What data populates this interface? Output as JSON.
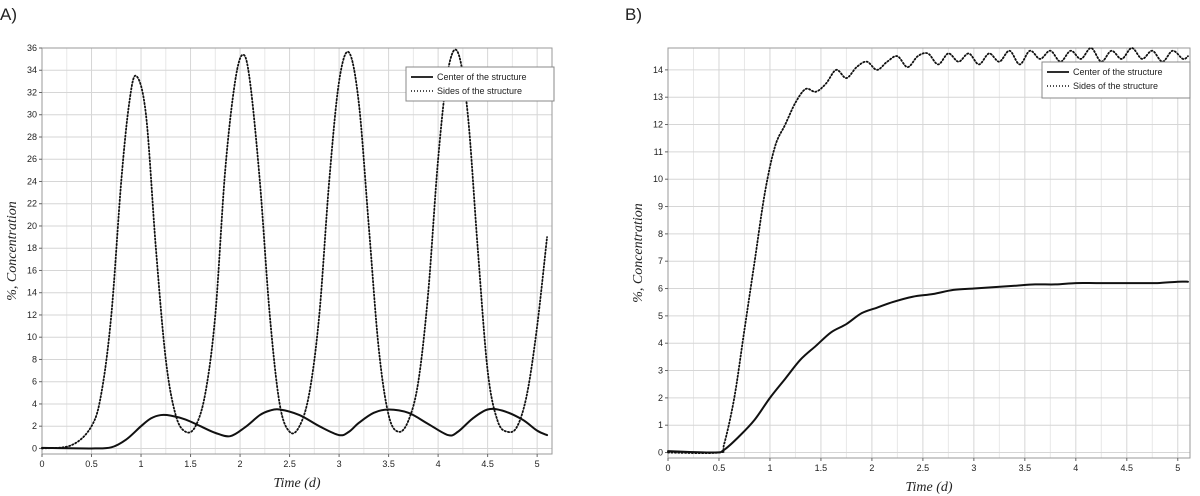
{
  "chart_data": [
    {
      "type": "line",
      "panel_label": "A)",
      "title": "",
      "xlabel": "Time (d)",
      "ylabel": "%, Concentration",
      "xlim": [
        0,
        5.15
      ],
      "ylim": [
        -0.5,
        36
      ],
      "xticks": [
        "0",
        "0.5",
        "1",
        "1.5",
        "2",
        "2.5",
        "3",
        "3.5",
        "4",
        "4.5",
        "5"
      ],
      "yticks": [
        "0",
        "2",
        "4",
        "6",
        "8",
        "10",
        "12",
        "14",
        "16",
        "18",
        "20",
        "22",
        "24",
        "26",
        "28",
        "30",
        "32",
        "34",
        "36"
      ],
      "grid": true,
      "legend_position": "top-right",
      "series": [
        {
          "name": "Center of the structure",
          "style": "solid",
          "x": [
            0,
            0.5,
            0.7,
            0.85,
            1.0,
            1.1,
            1.2,
            1.3,
            1.45,
            1.6,
            1.75,
            1.9,
            2.05,
            2.2,
            2.3,
            2.4,
            2.6,
            2.8,
            3.0,
            3.1,
            3.2,
            3.35,
            3.5,
            3.7,
            3.9,
            4.1,
            4.2,
            4.35,
            4.5,
            4.65,
            4.85,
            5.0,
            5.1
          ],
          "y": [
            0.05,
            0.0,
            0.1,
            0.8,
            2.0,
            2.7,
            3.0,
            2.95,
            2.6,
            2.0,
            1.4,
            1.1,
            1.9,
            3.0,
            3.4,
            3.5,
            3.0,
            2.0,
            1.2,
            1.5,
            2.3,
            3.2,
            3.5,
            3.2,
            2.2,
            1.2,
            1.5,
            2.7,
            3.5,
            3.4,
            2.6,
            1.6,
            1.2
          ]
        },
        {
          "name": "Sides of the structure",
          "style": "dotted",
          "x": [
            0,
            0.3,
            0.5,
            0.6,
            0.7,
            0.8,
            0.88,
            0.95,
            1.05,
            1.15,
            1.25,
            1.35,
            1.45,
            1.55,
            1.65,
            1.75,
            1.85,
            1.95,
            2.03,
            2.1,
            2.2,
            2.3,
            2.4,
            2.5,
            2.6,
            2.7,
            2.8,
            2.9,
            3.0,
            3.1,
            3.2,
            3.3,
            3.4,
            3.5,
            3.6,
            3.7,
            3.8,
            3.9,
            4.0,
            4.1,
            4.2,
            4.3,
            4.4,
            4.5,
            4.6,
            4.7,
            4.8,
            4.9,
            5.0,
            5.1
          ],
          "y": [
            0.0,
            0.3,
            2.0,
            5.0,
            12.0,
            24.0,
            31.0,
            33.5,
            30.0,
            18.0,
            8.0,
            3.0,
            1.5,
            2.0,
            5.0,
            12.0,
            25.0,
            33.0,
            35.4,
            33.0,
            24.0,
            12.0,
            4.0,
            1.5,
            2.0,
            5.0,
            12.0,
            24.0,
            33.0,
            35.6,
            31.0,
            20.0,
            9.0,
            3.0,
            1.5,
            2.5,
            6.0,
            14.0,
            26.0,
            34.0,
            35.6,
            30.0,
            18.0,
            7.0,
            2.5,
            1.5,
            2.0,
            5.0,
            11.0,
            19.0
          ]
        }
      ]
    },
    {
      "type": "line",
      "panel_label": "B)",
      "title": "",
      "xlabel": "Time (d)",
      "ylabel": "%, Concentration",
      "xlim": [
        0,
        5.12
      ],
      "ylim": [
        -0.2,
        14.8
      ],
      "xticks": [
        "0",
        "0.5",
        "1",
        "1.5",
        "2",
        "2.5",
        "3",
        "3.5",
        "4",
        "4.5",
        "5"
      ],
      "yticks": [
        "0",
        "1",
        "2",
        "3",
        "4",
        "5",
        "6",
        "7",
        "8",
        "9",
        "10",
        "11",
        "12",
        "13",
        "14"
      ],
      "grid": true,
      "legend_position": "top-right",
      "series": [
        {
          "name": "Center of the structure",
          "style": "solid",
          "x": [
            0,
            0.45,
            0.55,
            0.7,
            0.85,
            1.0,
            1.15,
            1.3,
            1.45,
            1.6,
            1.75,
            1.9,
            2.05,
            2.2,
            2.4,
            2.6,
            2.8,
            3.0,
            3.2,
            3.4,
            3.6,
            3.8,
            4.0,
            4.2,
            4.4,
            4.6,
            4.8,
            5.0,
            5.1
          ],
          "y": [
            0.05,
            0.0,
            0.1,
            0.6,
            1.2,
            2.0,
            2.7,
            3.4,
            3.9,
            4.4,
            4.7,
            5.1,
            5.3,
            5.5,
            5.7,
            5.8,
            5.95,
            6.0,
            6.05,
            6.1,
            6.15,
            6.15,
            6.2,
            6.2,
            6.2,
            6.2,
            6.2,
            6.25,
            6.25
          ]
        },
        {
          "name": "Sides of the structure",
          "style": "dotted",
          "x": [
            0,
            0.5,
            0.55,
            0.65,
            0.75,
            0.85,
            0.95,
            1.05,
            1.15,
            1.25,
            1.35,
            1.45,
            1.55,
            1.65,
            1.75,
            1.85,
            1.95,
            2.05,
            2.15,
            2.25,
            2.35,
            2.45,
            2.55,
            2.65,
            2.75,
            2.85,
            2.95,
            3.05,
            3.15,
            3.25,
            3.35,
            3.45,
            3.55,
            3.65,
            3.75,
            3.85,
            3.95,
            4.05,
            4.15,
            4.25,
            4.35,
            4.45,
            4.55,
            4.65,
            4.75,
            4.85,
            4.95,
            5.05,
            5.1
          ],
          "y": [
            0.0,
            0.0,
            0.3,
            2.0,
            4.5,
            7.0,
            9.5,
            11.2,
            12.0,
            12.8,
            13.3,
            13.2,
            13.5,
            14.0,
            13.7,
            14.1,
            14.3,
            14.0,
            14.3,
            14.5,
            14.1,
            14.5,
            14.6,
            14.2,
            14.6,
            14.3,
            14.6,
            14.2,
            14.6,
            14.3,
            14.7,
            14.2,
            14.7,
            14.4,
            14.7,
            14.3,
            14.7,
            14.4,
            14.8,
            14.3,
            14.7,
            14.4,
            14.8,
            14.4,
            14.7,
            14.3,
            14.7,
            14.4,
            14.5
          ]
        }
      ]
    }
  ]
}
